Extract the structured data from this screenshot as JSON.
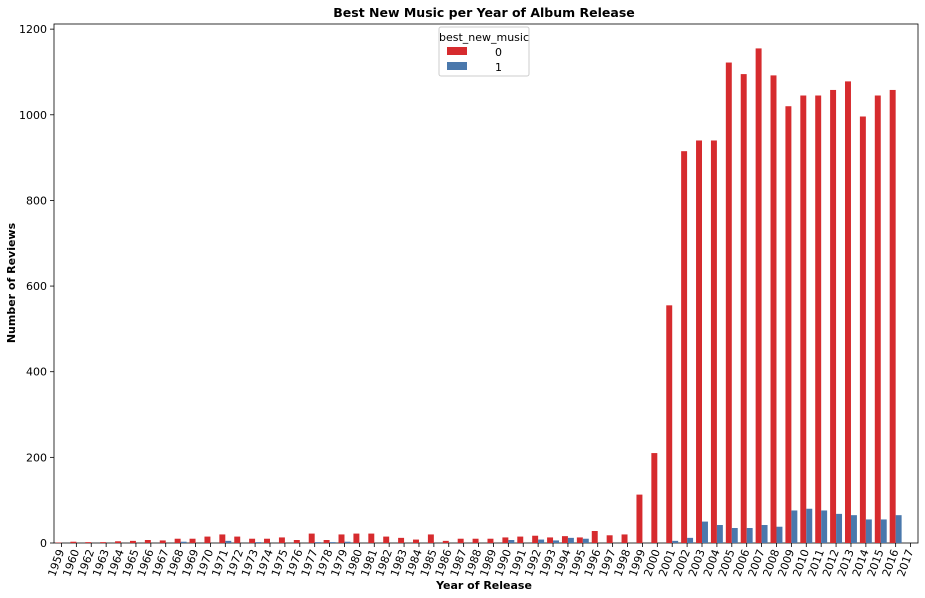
{
  "chart_data": {
    "type": "bar",
    "title": "Best New Music per Year of Album Release",
    "xlabel": "Year of Release",
    "ylabel": "Number of Reviews",
    "ylim": [
      0,
      1212
    ],
    "yticks": [
      0,
      200,
      400,
      600,
      800,
      1000,
      1200
    ],
    "grid": false,
    "legend": {
      "title": "best_new_music",
      "placement": "top-center"
    },
    "categories": [
      "1959",
      "1960",
      "1962",
      "1963",
      "1964",
      "1965",
      "1966",
      "1967",
      "1968",
      "1969",
      "1970",
      "1971",
      "1972",
      "1973",
      "1974",
      "1975",
      "1976",
      "1977",
      "1978",
      "1979",
      "1980",
      "1981",
      "1982",
      "1983",
      "1984",
      "1985",
      "1986",
      "1987",
      "1988",
      "1989",
      "1990",
      "1991",
      "1992",
      "1993",
      "1994",
      "1995",
      "1996",
      "1997",
      "1998",
      "1999",
      "2000",
      "2001",
      "2002",
      "2003",
      "2004",
      "2005",
      "2006",
      "2007",
      "2008",
      "2009",
      "2010",
      "2011",
      "2012",
      "2013",
      "2014",
      "2015",
      "2016",
      "2017"
    ],
    "series": [
      {
        "name": "0",
        "color": "#d62b2e",
        "values": [
          1,
          3,
          2,
          2,
          4,
          5,
          7,
          6,
          10,
          10,
          15,
          20,
          15,
          10,
          10,
          13,
          7,
          22,
          7,
          20,
          22,
          22,
          15,
          12,
          8,
          20,
          5,
          10,
          10,
          10,
          13,
          15,
          17,
          13,
          16,
          13,
          28,
          18,
          20,
          113,
          210,
          555,
          915,
          940,
          940,
          1122,
          1095,
          1155,
          1092,
          1020,
          1045,
          1045,
          1058,
          1078,
          996,
          1045,
          1058,
          0
        ]
      },
      {
        "name": "1",
        "color": "#4a78ac",
        "values": [
          0,
          0,
          0,
          0,
          0,
          0,
          0,
          0,
          3,
          0,
          0,
          5,
          0,
          2,
          0,
          0,
          0,
          2,
          2,
          3,
          0,
          0,
          0,
          0,
          0,
          0,
          0,
          0,
          0,
          0,
          7,
          0,
          8,
          6,
          12,
          10,
          0,
          0,
          0,
          0,
          0,
          5,
          12,
          50,
          42,
          35,
          35,
          42,
          38,
          76,
          80,
          76,
          68,
          65,
          55,
          55,
          65,
          0
        ]
      }
    ]
  }
}
